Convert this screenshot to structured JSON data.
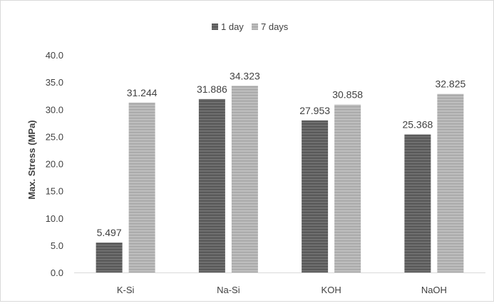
{
  "chart_data": {
    "type": "bar",
    "title": "",
    "xlabel": "",
    "ylabel": "Max. Stress (MPa)",
    "categories": [
      "K-Si",
      "Na-Si",
      "KOH",
      "NaOH"
    ],
    "series": [
      {
        "name": "1 day",
        "values": [
          5.497,
          31.886,
          27.953,
          25.368
        ],
        "value_labels": [
          "5.497",
          "31.886",
          "27.953",
          "25.368"
        ],
        "color": "#6e6e6e",
        "stripe_color": "#4f4f4f"
      },
      {
        "name": "7 days",
        "values": [
          31.244,
          34.323,
          30.858,
          32.825
        ],
        "value_labels": [
          "31.244",
          "34.323",
          "30.858",
          "32.825"
        ],
        "color": "#bdbdbd",
        "stripe_color": "#a3a3a3"
      }
    ],
    "ylim": [
      0,
      40
    ],
    "yticks": [
      0,
      5,
      10,
      15,
      20,
      25,
      30,
      35,
      40
    ],
    "ytick_labels": [
      "0.0",
      "5.0",
      "10.0",
      "15.0",
      "20.0",
      "25.0",
      "30.0",
      "35.0",
      "40.0"
    ],
    "grid": false,
    "legend_position": "top"
  }
}
